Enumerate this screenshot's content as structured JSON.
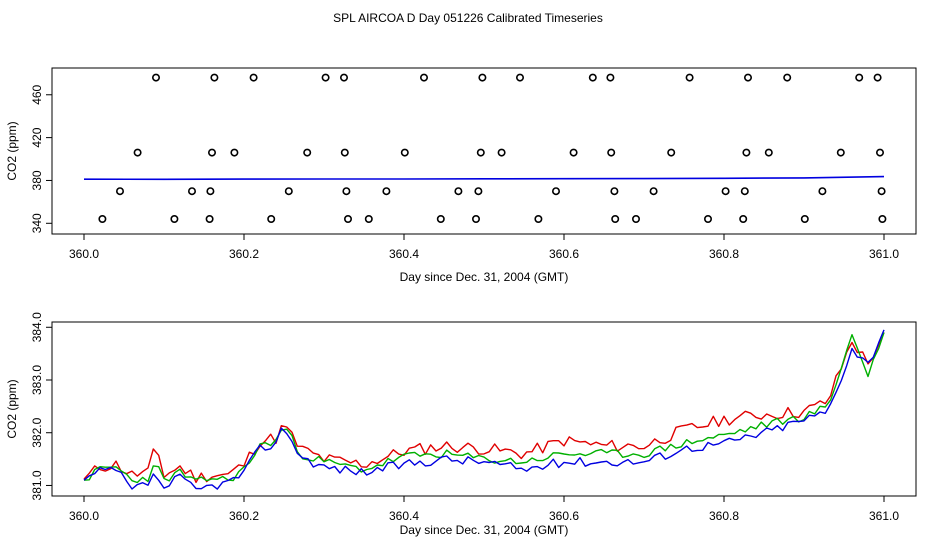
{
  "figure_title": "SPL AIRCOA D  Day 051226  Calibrated Timeseries",
  "colors": {
    "red": "#e00000",
    "green": "#00b000",
    "blue": "#0000e0",
    "top_line": "#0000e0",
    "points": "#000000"
  },
  "chart_data": [
    {
      "type": "scatter",
      "title": "",
      "xlabel": "Day since Dec. 31, 2004 (GMT)",
      "ylabel": "CO2 (ppm)",
      "xlim": [
        360.0,
        361.0
      ],
      "ylim": [
        330,
        485
      ],
      "x_ticks": [
        360.0,
        360.2,
        360.4,
        360.6,
        360.8,
        361.0
      ],
      "x_tick_labels": [
        "360.0",
        "360.2",
        "360.4",
        "360.6",
        "360.8",
        "361.0"
      ],
      "y_ticks": [
        340,
        380,
        420,
        460
      ],
      "y_tick_labels": [
        "340",
        "380",
        "420",
        "460"
      ],
      "points": [
        {
          "x": 360.09,
          "y": 476
        },
        {
          "x": 360.163,
          "y": 476
        },
        {
          "x": 360.212,
          "y": 476
        },
        {
          "x": 360.302,
          "y": 476
        },
        {
          "x": 360.325,
          "y": 476
        },
        {
          "x": 360.425,
          "y": 476
        },
        {
          "x": 360.498,
          "y": 476
        },
        {
          "x": 360.545,
          "y": 476
        },
        {
          "x": 360.636,
          "y": 476
        },
        {
          "x": 360.658,
          "y": 476
        },
        {
          "x": 360.757,
          "y": 476
        },
        {
          "x": 360.83,
          "y": 476
        },
        {
          "x": 360.879,
          "y": 476
        },
        {
          "x": 360.969,
          "y": 476
        },
        {
          "x": 360.992,
          "y": 476
        },
        {
          "x": 360.067,
          "y": 406
        },
        {
          "x": 360.16,
          "y": 406
        },
        {
          "x": 360.188,
          "y": 406
        },
        {
          "x": 360.279,
          "y": 406
        },
        {
          "x": 360.326,
          "y": 406
        },
        {
          "x": 360.401,
          "y": 406
        },
        {
          "x": 360.496,
          "y": 406
        },
        {
          "x": 360.522,
          "y": 406
        },
        {
          "x": 360.612,
          "y": 406
        },
        {
          "x": 360.659,
          "y": 406
        },
        {
          "x": 360.734,
          "y": 406
        },
        {
          "x": 360.828,
          "y": 406
        },
        {
          "x": 360.856,
          "y": 406
        },
        {
          "x": 360.946,
          "y": 406
        },
        {
          "x": 360.995,
          "y": 406
        },
        {
          "x": 360.045,
          "y": 370
        },
        {
          "x": 360.135,
          "y": 370
        },
        {
          "x": 360.158,
          "y": 370
        },
        {
          "x": 360.256,
          "y": 370
        },
        {
          "x": 360.328,
          "y": 370
        },
        {
          "x": 360.378,
          "y": 370
        },
        {
          "x": 360.468,
          "y": 370
        },
        {
          "x": 360.493,
          "y": 370
        },
        {
          "x": 360.59,
          "y": 370
        },
        {
          "x": 360.663,
          "y": 370
        },
        {
          "x": 360.712,
          "y": 370
        },
        {
          "x": 360.802,
          "y": 370
        },
        {
          "x": 360.826,
          "y": 370
        },
        {
          "x": 360.923,
          "y": 370
        },
        {
          "x": 360.997,
          "y": 370
        },
        {
          "x": 360.023,
          "y": 344
        },
        {
          "x": 360.113,
          "y": 344
        },
        {
          "x": 360.157,
          "y": 344
        },
        {
          "x": 360.234,
          "y": 344
        },
        {
          "x": 360.33,
          "y": 344
        },
        {
          "x": 360.356,
          "y": 344
        },
        {
          "x": 360.446,
          "y": 344
        },
        {
          "x": 360.49,
          "y": 344
        },
        {
          "x": 360.568,
          "y": 344
        },
        {
          "x": 360.664,
          "y": 344
        },
        {
          "x": 360.69,
          "y": 344
        },
        {
          "x": 360.78,
          "y": 344
        },
        {
          "x": 360.824,
          "y": 344
        },
        {
          "x": 360.901,
          "y": 344
        },
        {
          "x": 360.998,
          "y": 344
        }
      ],
      "line": {
        "x": [
          360.0,
          360.1,
          360.2,
          360.3,
          360.4,
          360.5,
          360.6,
          360.7,
          360.8,
          360.9,
          361.0
        ],
        "y": [
          381.2,
          381.1,
          381.3,
          381.4,
          381.4,
          381.5,
          381.6,
          381.7,
          382.0,
          382.4,
          383.6
        ]
      }
    },
    {
      "type": "line",
      "title": "",
      "xlabel": "Day since Dec. 31, 2004 (GMT)",
      "ylabel": "CO2 (ppm)",
      "xlim": [
        359.99,
        361.01
      ],
      "ylim": [
        380.8,
        384.1
      ],
      "x_ticks": [
        360.0,
        360.2,
        360.4,
        360.6,
        360.8,
        361.0
      ],
      "x_tick_labels": [
        "360.0",
        "360.2",
        "360.4",
        "360.6",
        "360.8",
        "361.0"
      ],
      "y_ticks": [
        381.0,
        382.0,
        383.0,
        384.0
      ],
      "y_tick_labels": [
        "381.0",
        "382.0",
        "383.0",
        "384.0"
      ],
      "knots_x": [
        360.0,
        360.02,
        360.04,
        360.06,
        360.08,
        360.09,
        360.1,
        360.12,
        360.14,
        360.16,
        360.18,
        360.2,
        360.22,
        360.24,
        360.25,
        360.27,
        360.3,
        360.35,
        360.4,
        360.45,
        360.5,
        360.55,
        360.6,
        360.65,
        360.7,
        360.75,
        360.8,
        360.85,
        360.9,
        360.93,
        360.96,
        360.98,
        361.0
      ],
      "series": [
        {
          "name": "red",
          "color": "#e00000",
          "knots_y": [
            381.12,
            381.35,
            381.4,
            381.2,
            381.25,
            381.75,
            381.2,
            381.35,
            381.15,
            381.2,
            381.2,
            381.4,
            381.85,
            381.9,
            382.15,
            381.7,
            381.5,
            381.4,
            381.65,
            381.75,
            381.7,
            381.6,
            381.85,
            381.75,
            381.75,
            382.05,
            382.25,
            382.35,
            382.4,
            382.6,
            383.75,
            383.3,
            383.9
          ],
          "amp": 0.12,
          "seed": 11
        },
        {
          "name": "green",
          "color": "#00b000",
          "knots_y": [
            381.1,
            381.3,
            381.35,
            381.1,
            381.15,
            381.4,
            381.1,
            381.25,
            381.05,
            381.15,
            381.1,
            381.3,
            381.75,
            381.85,
            382.15,
            381.6,
            381.45,
            381.3,
            381.55,
            381.6,
            381.5,
            381.45,
            381.6,
            381.6,
            381.6,
            381.8,
            381.95,
            382.15,
            382.3,
            382.5,
            383.85,
            383.1,
            383.9
          ],
          "amp": 0.08,
          "seed": 23
        },
        {
          "name": "blue",
          "color": "#0000e0",
          "knots_y": [
            381.1,
            381.25,
            381.3,
            380.9,
            381.05,
            381.2,
            380.95,
            381.15,
            380.9,
            381.0,
            381.05,
            381.25,
            381.7,
            381.8,
            382.15,
            381.55,
            381.35,
            381.25,
            381.4,
            381.5,
            381.45,
            381.3,
            381.45,
            381.45,
            381.45,
            381.7,
            381.8,
            382.0,
            382.25,
            382.4,
            383.6,
            383.3,
            383.95
          ],
          "amp": 0.09,
          "seed": 37
        }
      ]
    }
  ]
}
